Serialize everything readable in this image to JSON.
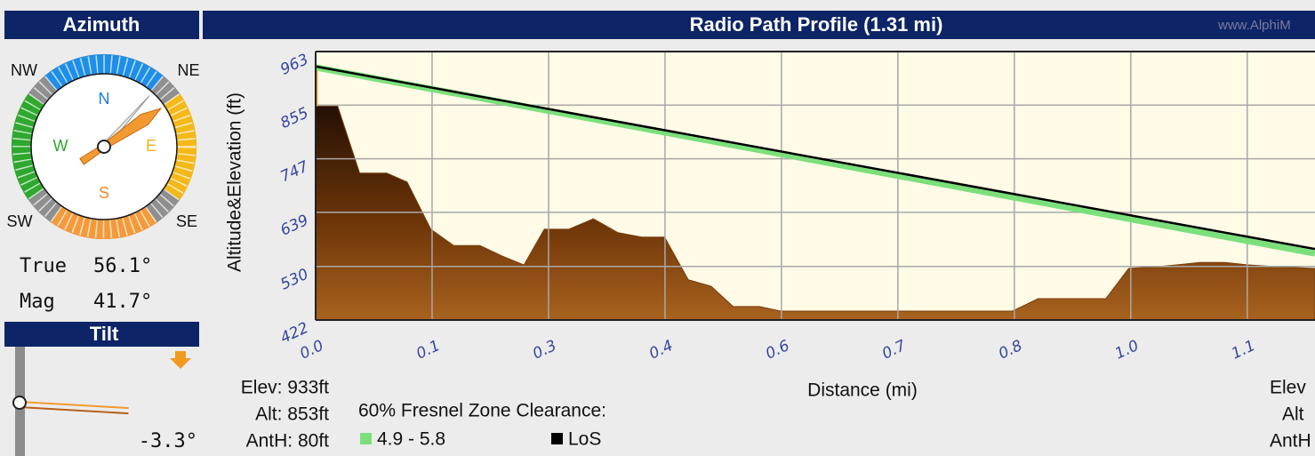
{
  "azimuth": {
    "title": "Azimuth",
    "compass": {
      "nw": "NW",
      "ne": "NE",
      "sw": "SW",
      "se": "SE",
      "n": "N",
      "w": "W",
      "e": "E",
      "s": "S"
    },
    "true": {
      "label": "True",
      "bearing": {
        "value": 56.1,
        "label": "56.1°"
      }
    },
    "mag": {
      "label": "Mag",
      "bearing": {
        "value": 41.7,
        "label": "41.7°"
      }
    }
  },
  "tilt": {
    "title": "Tilt",
    "angle": {
      "value": -3.3,
      "label": "-3.3°"
    }
  },
  "site": {
    "elev": "Elev: 933ft",
    "alt": "Alt: 853ft",
    "anth": "AntH: 80ft"
  },
  "remote": {
    "elev": "Elev",
    "alt": "Alt",
    "anth": "AntH"
  },
  "header": {
    "title": "Radio Path Profile (1.31 mi)",
    "watermark": "www.AlphiM"
  },
  "chart_data": {
    "type": "area",
    "x_label": "Distance (mi)",
    "y_label": "Altitude&Elevation (ft)",
    "legend_title": "60% Fresnel Zone Clearance:",
    "xlim": [
      0,
      1.18
    ],
    "ylim": [
      422,
      963
    ],
    "xticks": [
      {
        "value": 0,
        "label": "0.0"
      },
      {
        "value": 0.1375,
        "label": "0.1"
      },
      {
        "value": 0.275,
        "label": "0.3"
      },
      {
        "value": 0.4125,
        "label": "0.4"
      },
      {
        "value": 0.55,
        "label": "0.6"
      },
      {
        "value": 0.6875,
        "label": "0.7"
      },
      {
        "value": 0.825,
        "label": "0.8"
      },
      {
        "value": 0.9625,
        "label": "1.0"
      },
      {
        "value": 1.1,
        "label": "1.1"
      }
    ],
    "yticks": [
      422,
      530,
      639,
      747,
      855,
      963
    ],
    "grid": true,
    "terrain": {
      "color": "#7a3c0c",
      "x": [
        0,
        0.026,
        0.052,
        0.084,
        0.108,
        0.136,
        0.163,
        0.194,
        0.22,
        0.246,
        0.27,
        0.299,
        0.328,
        0.357,
        0.385,
        0.412,
        0.44,
        0.467,
        0.493,
        0.524,
        0.549,
        0.823,
        0.853,
        0.933,
        0.96,
        0.991,
        1.017,
        1.044,
        1.073,
        1.101,
        1.138,
        1.18
      ],
      "values": [
        853,
        853,
        718,
        718,
        700,
        605,
        572,
        572,
        551,
        533,
        605,
        605,
        626,
        598,
        589,
        589,
        503,
        490,
        449,
        449,
        440,
        440,
        465,
        465,
        526,
        529,
        533,
        538,
        538,
        533,
        529,
        526
      ]
    },
    "series": [
      {
        "name": "4.9 - 5.8",
        "color": "#7be07b",
        "x": [
          0,
          1.18
        ],
        "values": [
          931,
          556
        ]
      },
      {
        "name": "LoS",
        "color": "#000000",
        "x": [
          0,
          1.18
        ],
        "values": [
          933,
          565
        ]
      }
    ]
  }
}
